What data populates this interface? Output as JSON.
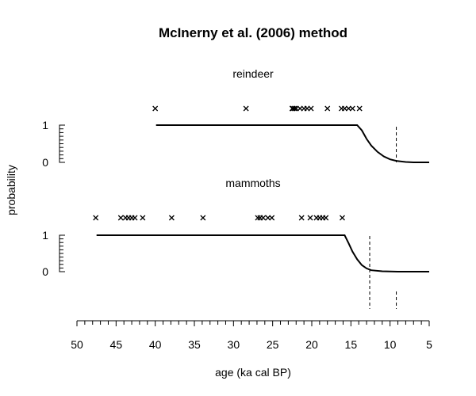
{
  "chart_data": {
    "type": "line",
    "title": "McInerny et al. (2006) method",
    "xlabel": "age (ka cal BP)",
    "ylabel": "probability",
    "xlim": [
      50,
      5
    ],
    "x_reversed": true,
    "x_ticks": [
      "50",
      "45",
      "40",
      "35",
      "30",
      "25",
      "20",
      "15",
      "10",
      "5"
    ],
    "grid": false,
    "panels": [
      {
        "name": "reindeer",
        "y_ticks": [
          "1",
          "0"
        ],
        "observations": [
          40.0,
          28.4,
          22.5,
          22.4,
          22.2,
          22.0,
          21.5,
          21.0,
          20.6,
          20.1,
          18.0,
          16.2,
          15.8,
          15.3,
          14.8,
          13.9
        ],
        "probability_curve": {
          "x": [
            39.9,
            30,
            20,
            14.2,
            13.6,
            13.0,
            12.4,
            11.6,
            10.8,
            10.0,
            9.2,
            8.0,
            7.0,
            6.0,
            5.0
          ],
          "y": [
            1,
            1,
            1,
            1,
            0.86,
            0.63,
            0.45,
            0.28,
            0.16,
            0.08,
            0.04,
            0.01,
            0.0,
            0.0,
            0.0
          ]
        },
        "dashed_lines": [
          9.2
        ]
      },
      {
        "name": "mammoths",
        "y_ticks": [
          "1",
          "0"
        ],
        "observations": [
          47.6,
          44.4,
          43.8,
          43.4,
          43.0,
          42.6,
          41.6,
          37.9,
          33.9,
          26.9,
          26.6,
          26.2,
          25.6,
          25.1,
          21.3,
          20.2,
          19.4,
          19.0,
          18.6,
          18.2,
          16.1
        ],
        "probability_curve": {
          "x": [
            47.5,
            40,
            30,
            20,
            15.8,
            15.3,
            14.8,
            14.2,
            13.6,
            13.0,
            12.4,
            11.0,
            9.0,
            7.0,
            5.0
          ],
          "y": [
            1,
            1,
            1,
            1,
            1,
            0.78,
            0.55,
            0.34,
            0.18,
            0.09,
            0.04,
            0.01,
            0.0,
            0.0,
            0.0
          ]
        },
        "dashed_lines": [
          12.6,
          9.2
        ]
      }
    ]
  }
}
